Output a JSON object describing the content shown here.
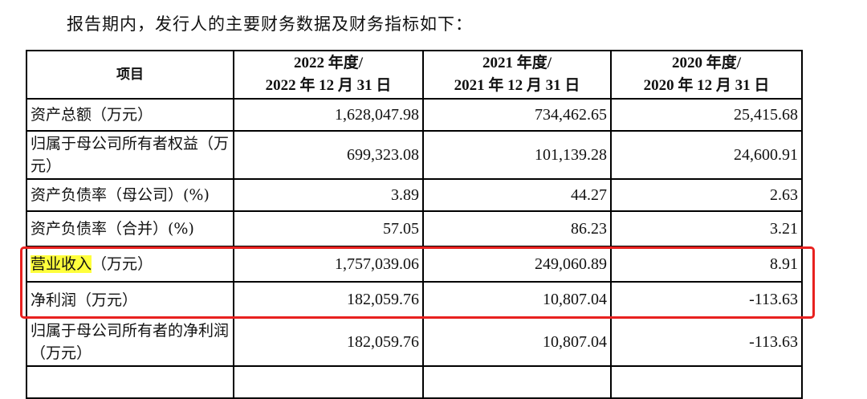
{
  "intro": "报告期内，发行人的主要财务数据及财务指标如下：",
  "table": {
    "headers": {
      "item": "项目",
      "col1_line1": "2022 年度/",
      "col1_line2": "2022 年 12 月 31 日",
      "col2_line1": "2021 年度/",
      "col2_line2": "2021 年 12 月 31 日",
      "col3_line1": "2020 年度/",
      "col3_line2": "2020 年 12 月 31 日"
    },
    "rows": [
      {
        "label": "资产总额（万元）",
        "v2022": "1,628,047.98",
        "v2021": "734,462.65",
        "v2020": "25,415.68"
      },
      {
        "label": "归属于母公司所有者权益（万元）",
        "v2022": "699,323.08",
        "v2021": "101,139.28",
        "v2020": "24,600.91"
      },
      {
        "label": "资产负债率（母公司）(%)",
        "v2022": "3.89",
        "v2021": "44.27",
        "v2020": "2.63"
      },
      {
        "label": "资产负债率（合并）(%)",
        "v2022": "57.05",
        "v2021": "86.23",
        "v2020": "3.21"
      },
      {
        "label_highlight": "营业收入",
        "label_rest": "（万元）",
        "v2022": "1,757,039.06",
        "v2021": "249,060.89",
        "v2020": "8.91"
      },
      {
        "label": "净利润（万元）",
        "v2022": "182,059.76",
        "v2021": "10,807.04",
        "v2020": "-113.63"
      },
      {
        "label": "归属于母公司所有者的净利润（万元）",
        "v2022": "182,059.76",
        "v2021": "10,807.04",
        "v2020": "-113.63"
      }
    ]
  },
  "colors": {
    "highlight": "#ffff3c",
    "annotation_box": "#e8211f"
  }
}
